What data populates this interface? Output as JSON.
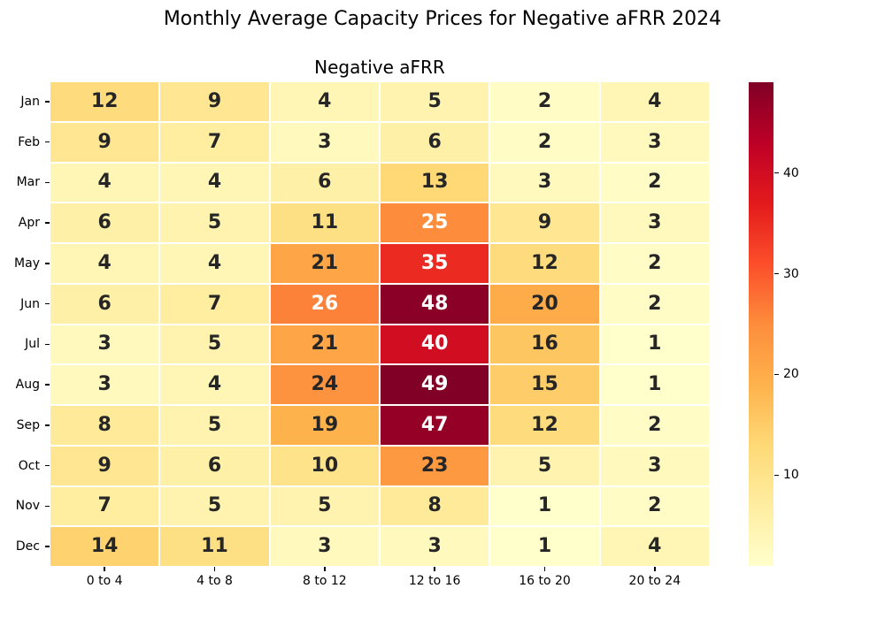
{
  "chart_data": {
    "type": "heatmap",
    "title": "Monthly Average Capacity Prices for Negative aFRR 2024",
    "subtitle": "Negative aFRR",
    "rows": [
      "Jan",
      "Feb",
      "Mar",
      "Apr",
      "May",
      "Jun",
      "Jul",
      "Aug",
      "Sep",
      "Oct",
      "Nov",
      "Dec"
    ],
    "columns": [
      "0 to 4",
      "4 to 8",
      "8 to 12",
      "12 to 16",
      "16 to 20",
      "20 to 24"
    ],
    "values": [
      [
        12,
        9,
        4,
        5,
        2,
        4
      ],
      [
        9,
        7,
        3,
        6,
        2,
        3
      ],
      [
        4,
        4,
        6,
        13,
        3,
        2
      ],
      [
        6,
        5,
        11,
        25,
        9,
        3
      ],
      [
        4,
        4,
        21,
        35,
        12,
        2
      ],
      [
        6,
        7,
        26,
        48,
        20,
        2
      ],
      [
        3,
        5,
        21,
        40,
        16,
        1
      ],
      [
        3,
        4,
        24,
        49,
        15,
        1
      ],
      [
        8,
        5,
        19,
        47,
        12,
        2
      ],
      [
        9,
        6,
        10,
        23,
        5,
        3
      ],
      [
        7,
        5,
        5,
        8,
        1,
        2
      ],
      [
        14,
        11,
        3,
        3,
        1,
        4
      ]
    ],
    "vmin": 1,
    "vmax": 49,
    "colormap": {
      "name": "YlOrRd",
      "stops": [
        "#ffffcc",
        "#ffeda0",
        "#fed976",
        "#feb24c",
        "#fd8d3c",
        "#fc4e2a",
        "#e31a1c",
        "#bd0026",
        "#800026"
      ]
    },
    "colorbar_ticks": [
      10,
      20,
      30,
      40
    ],
    "annotation_dark_color": "#262626",
    "annotation_light_color": "#ffffff",
    "layout": {
      "grid": false,
      "legend": "colorbar-right",
      "cell_border_color": "#ffffff"
    }
  }
}
